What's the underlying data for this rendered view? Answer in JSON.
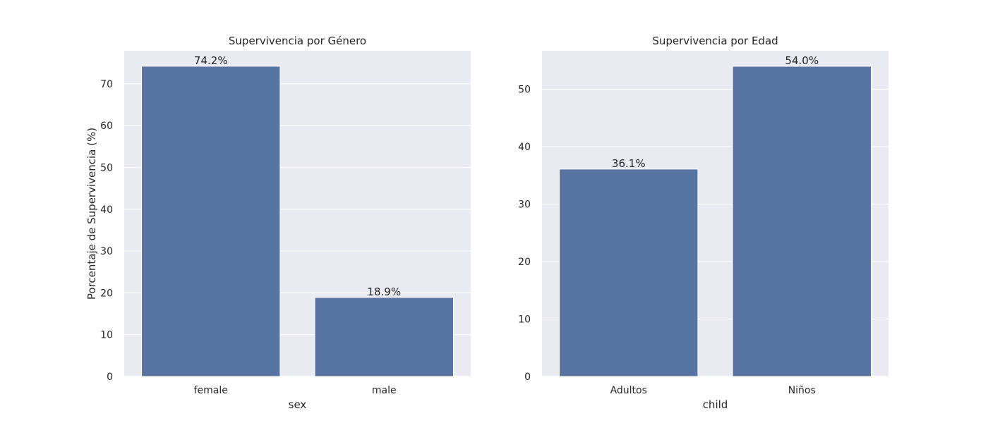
{
  "chart_data": [
    {
      "type": "bar",
      "title": "Supervivencia por Género",
      "xlabel": "sex",
      "ylabel": "Porcentaje de Supervivencia (%)",
      "categories": [
        "female",
        "male"
      ],
      "values": [
        74.2,
        18.9
      ],
      "data_labels": [
        "74.2%",
        "18.9%"
      ],
      "yticks": [
        0,
        10,
        20,
        30,
        40,
        50,
        60,
        70
      ],
      "ylim": [
        0,
        77.9
      ],
      "grid": true,
      "bar_color": "#5874a2"
    },
    {
      "type": "bar",
      "title": "Supervivencia por Edad",
      "xlabel": "child",
      "ylabel": "",
      "categories": [
        "Adultos",
        "Niños"
      ],
      "values": [
        36.1,
        54.0
      ],
      "data_labels": [
        "36.1%",
        "54.0%"
      ],
      "yticks": [
        0,
        10,
        20,
        30,
        40,
        50
      ],
      "ylim": [
        0,
        56.7
      ],
      "grid": true,
      "bar_color": "#5874a2"
    }
  ],
  "colors": {
    "background": "#eaeaf2",
    "grid": "#ffffff",
    "text": "#262626"
  }
}
